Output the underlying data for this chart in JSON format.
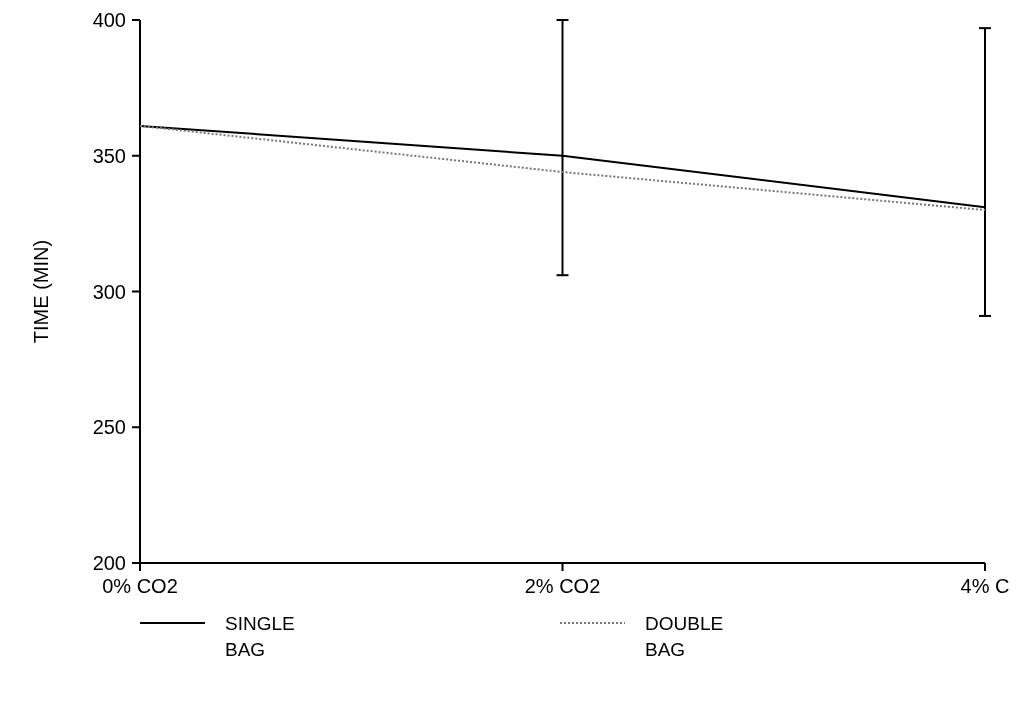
{
  "chart_data": {
    "type": "line",
    "ylabel": "TIME (MIN)",
    "categories": [
      "0% CO2",
      "2% CO2",
      "4% C"
    ],
    "series": [
      {
        "name": "SINGLE\nBAG",
        "color": "#000000",
        "values": [
          361,
          350,
          331
        ],
        "errors": [
          null,
          [
            306,
            400
          ],
          [
            291,
            397
          ]
        ],
        "line_style": "solid"
      },
      {
        "name": "DOUBLE\nBAG",
        "color": "#777777",
        "values": [
          361,
          344,
          330
        ],
        "line_style": "dotted"
      }
    ],
    "ylim": [
      200,
      400
    ],
    "yticks": [
      200,
      250,
      300,
      350,
      400
    ],
    "grid": false,
    "legend": "bottom",
    "marker": "none"
  }
}
